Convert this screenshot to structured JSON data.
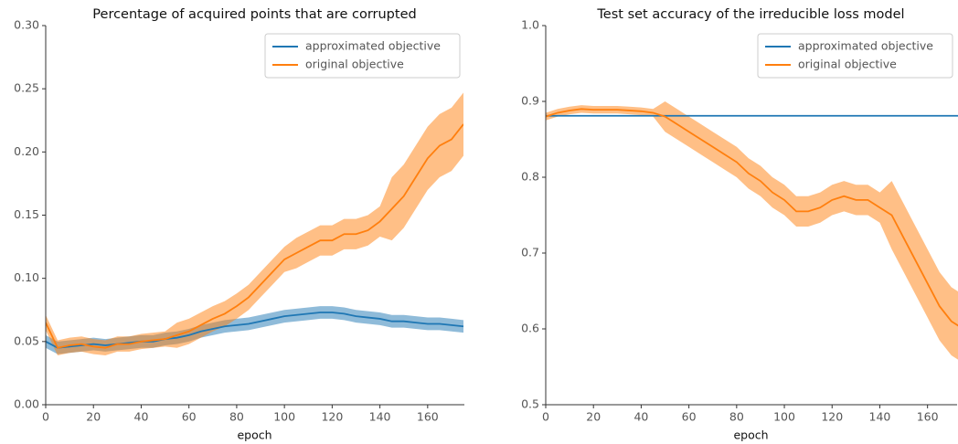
{
  "chart_data": [
    {
      "type": "line",
      "title": "Percentage of acquired points that are corrupted",
      "xlabel": "epoch",
      "x": [
        0,
        5,
        10,
        15,
        20,
        25,
        30,
        35,
        40,
        45,
        50,
        55,
        60,
        65,
        70,
        75,
        80,
        85,
        90,
        95,
        100,
        105,
        110,
        115,
        120,
        125,
        130,
        135,
        140,
        145,
        150,
        155,
        160,
        165,
        170,
        175
      ],
      "xlim": [
        0,
        175
      ],
      "xticks": [
        0,
        20,
        40,
        60,
        80,
        100,
        120,
        140,
        160
      ],
      "ylim": [
        0,
        0.3
      ],
      "yticks": [
        {
          "value": 0,
          "label": "0.00"
        },
        0.05,
        {
          "value": 0.1,
          "label": "0.10"
        },
        0.15,
        {
          "value": 0.2,
          "label": "0.20"
        },
        0.25,
        {
          "value": 0.3,
          "label": "0.30"
        }
      ],
      "legend": "upper right",
      "series": [
        {
          "name": "approximated objective",
          "color": "#1f77b4",
          "values": [
            0.05,
            0.045,
            0.046,
            0.047,
            0.048,
            0.047,
            0.048,
            0.049,
            0.05,
            0.05,
            0.052,
            0.053,
            0.055,
            0.058,
            0.06,
            0.062,
            0.063,
            0.064,
            0.066,
            0.068,
            0.07,
            0.071,
            0.072,
            0.073,
            0.073,
            0.072,
            0.07,
            0.069,
            0.068,
            0.066,
            0.066,
            0.065,
            0.064,
            0.064,
            0.063,
            0.062
          ],
          "lower": [
            0.045,
            0.04,
            0.041,
            0.042,
            0.043,
            0.042,
            0.043,
            0.044,
            0.045,
            0.045,
            0.047,
            0.048,
            0.05,
            0.053,
            0.055,
            0.057,
            0.058,
            0.059,
            0.061,
            0.063,
            0.065,
            0.066,
            0.067,
            0.068,
            0.068,
            0.067,
            0.065,
            0.064,
            0.063,
            0.061,
            0.061,
            0.06,
            0.059,
            0.059,
            0.058,
            0.057
          ],
          "upper": [
            0.055,
            0.05,
            0.051,
            0.052,
            0.053,
            0.052,
            0.053,
            0.054,
            0.055,
            0.055,
            0.057,
            0.058,
            0.06,
            0.063,
            0.065,
            0.067,
            0.068,
            0.069,
            0.071,
            0.073,
            0.075,
            0.076,
            0.077,
            0.078,
            0.078,
            0.077,
            0.075,
            0.074,
            0.073,
            0.071,
            0.071,
            0.07,
            0.069,
            0.069,
            0.068,
            0.067
          ]
        },
        {
          "name": "original objective",
          "color": "#ff7f0e",
          "values": [
            0.065,
            0.045,
            0.047,
            0.048,
            0.046,
            0.045,
            0.048,
            0.048,
            0.05,
            0.051,
            0.052,
            0.055,
            0.058,
            0.063,
            0.068,
            0.072,
            0.078,
            0.085,
            0.095,
            0.105,
            0.115,
            0.12,
            0.125,
            0.13,
            0.13,
            0.135,
            0.135,
            0.138,
            0.145,
            0.155,
            0.165,
            0.18,
            0.195,
            0.205,
            0.21,
            0.222
          ],
          "lower": [
            0.059,
            0.039,
            0.041,
            0.042,
            0.04,
            0.039,
            0.042,
            0.042,
            0.044,
            0.045,
            0.046,
            0.045,
            0.048,
            0.053,
            0.058,
            0.062,
            0.068,
            0.075,
            0.085,
            0.095,
            0.105,
            0.108,
            0.113,
            0.118,
            0.118,
            0.123,
            0.123,
            0.126,
            0.133,
            0.13,
            0.14,
            0.155,
            0.17,
            0.18,
            0.185,
            0.197
          ],
          "upper": [
            0.071,
            0.051,
            0.053,
            0.054,
            0.052,
            0.051,
            0.054,
            0.054,
            0.056,
            0.057,
            0.058,
            0.065,
            0.068,
            0.073,
            0.078,
            0.082,
            0.088,
            0.095,
            0.105,
            0.115,
            0.125,
            0.132,
            0.137,
            0.142,
            0.142,
            0.147,
            0.147,
            0.15,
            0.157,
            0.18,
            0.19,
            0.205,
            0.22,
            0.23,
            0.235,
            0.247
          ]
        }
      ]
    },
    {
      "type": "line",
      "title": "Test set accuracy of the irreducible loss model",
      "xlabel": "epoch",
      "x": [
        0,
        5,
        10,
        15,
        20,
        25,
        30,
        35,
        40,
        45,
        50,
        55,
        60,
        65,
        70,
        75,
        80,
        85,
        90,
        95,
        100,
        105,
        110,
        115,
        120,
        125,
        130,
        135,
        140,
        145,
        150,
        155,
        160,
        165,
        170,
        175
      ],
      "xlim": [
        0,
        172
      ],
      "xticks": [
        0,
        20,
        40,
        60,
        80,
        100,
        120,
        140,
        160
      ],
      "ylim": [
        0.5,
        1.0
      ],
      "yticks": [
        0.5,
        0.6,
        0.7,
        0.8,
        0.9,
        {
          "value": 1.0,
          "label": "1.0"
        }
      ],
      "legend": "upper right",
      "series": [
        {
          "name": "approximated objective",
          "color": "#1f77b4",
          "values": [
            0.881,
            0.881,
            0.881,
            0.881,
            0.881,
            0.881,
            0.881,
            0.881,
            0.881,
            0.881,
            0.881,
            0.881,
            0.881,
            0.881,
            0.881,
            0.881,
            0.881,
            0.881,
            0.881,
            0.881,
            0.881,
            0.881,
            0.881,
            0.881,
            0.881,
            0.881,
            0.881,
            0.881,
            0.881,
            0.881,
            0.881,
            0.881,
            0.881,
            0.881,
            0.881,
            0.881
          ]
        },
        {
          "name": "original objective",
          "color": "#ff7f0e",
          "values": [
            0.88,
            0.885,
            0.888,
            0.89,
            0.889,
            0.889,
            0.889,
            0.888,
            0.887,
            0.885,
            0.88,
            0.87,
            0.86,
            0.85,
            0.84,
            0.83,
            0.82,
            0.805,
            0.795,
            0.78,
            0.77,
            0.755,
            0.755,
            0.76,
            0.77,
            0.775,
            0.77,
            0.77,
            0.76,
            0.75,
            0.72,
            0.69,
            0.66,
            0.63,
            0.61,
            0.6
          ],
          "lower": [
            0.875,
            0.88,
            0.883,
            0.885,
            0.884,
            0.884,
            0.884,
            0.883,
            0.882,
            0.88,
            0.86,
            0.85,
            0.84,
            0.83,
            0.82,
            0.81,
            0.8,
            0.785,
            0.775,
            0.76,
            0.75,
            0.735,
            0.735,
            0.74,
            0.75,
            0.755,
            0.75,
            0.75,
            0.74,
            0.705,
            0.675,
            0.645,
            0.615,
            0.585,
            0.565,
            0.555
          ],
          "upper": [
            0.885,
            0.89,
            0.893,
            0.895,
            0.894,
            0.894,
            0.894,
            0.893,
            0.892,
            0.89,
            0.9,
            0.89,
            0.88,
            0.87,
            0.86,
            0.85,
            0.84,
            0.825,
            0.815,
            0.8,
            0.79,
            0.775,
            0.775,
            0.78,
            0.79,
            0.795,
            0.79,
            0.79,
            0.78,
            0.795,
            0.765,
            0.735,
            0.705,
            0.675,
            0.655,
            0.645
          ]
        }
      ]
    }
  ]
}
